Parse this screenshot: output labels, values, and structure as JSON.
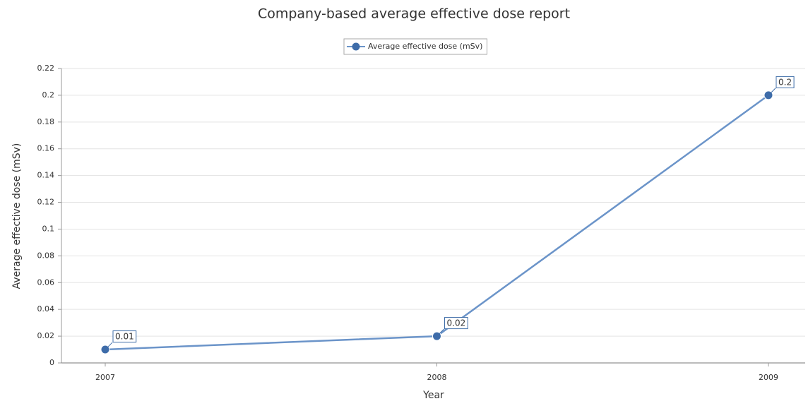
{
  "chart_data": {
    "type": "line",
    "title": "Company-based average effective dose report",
    "x_label": "Year",
    "y_label": "Average effective dose (mSv)",
    "categories": [
      "2007",
      "2008",
      "2009"
    ],
    "series": [
      {
        "name": "Average effective dose (mSv)",
        "color": "#6b94c9",
        "marker_color": "#3e6ca9",
        "values": [
          0.01,
          0.02,
          0.2
        ]
      }
    ],
    "ylim": [
      0,
      0.22
    ],
    "yticks": [
      0,
      0.02,
      0.04,
      0.06,
      0.08,
      0.1,
      0.12,
      0.14,
      0.16,
      0.18,
      0.2,
      0.22
    ],
    "grid": true,
    "legend": "top",
    "data_labels": true
  }
}
